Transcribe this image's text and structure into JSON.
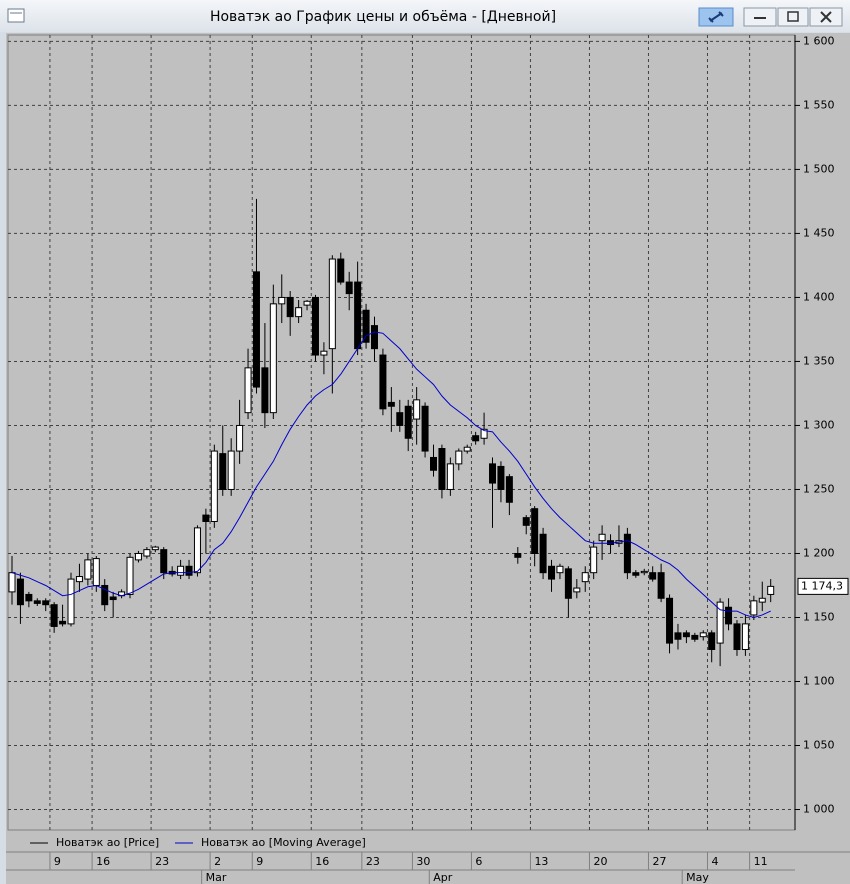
{
  "chart_data": {
    "type": "candlestick",
    "title": "Новатэк ао График цены и объёма - [Дневной]",
    "categories": [
      null,
      null,
      null,
      null,
      null,
      "9",
      null,
      null,
      null,
      null,
      "16",
      null,
      null,
      null,
      null,
      null,
      null,
      "23",
      null,
      null,
      null,
      null,
      null,
      null,
      "2",
      null,
      null,
      null,
      null,
      "9",
      null,
      null,
      null,
      null,
      null,
      null,
      "16",
      null,
      null,
      null,
      null,
      null,
      "23",
      null,
      null,
      null,
      null,
      null,
      "30",
      null,
      null,
      null,
      null,
      null,
      null,
      "6",
      null,
      null,
      null,
      null,
      null,
      null,
      "13",
      null,
      null,
      null,
      null,
      null,
      null,
      "20",
      null,
      null,
      null,
      null,
      null,
      null,
      "27",
      null,
      null,
      null,
      null,
      null,
      null,
      "4",
      null,
      null,
      null,
      null,
      "11",
      null,
      null
    ],
    "month_labels": [
      null,
      null,
      null,
      null,
      null,
      null,
      null,
      null,
      null,
      null,
      null,
      null,
      null,
      null,
      null,
      null,
      null,
      null,
      null,
      null,
      null,
      null,
      null,
      "Mar",
      null,
      null,
      null,
      null,
      null,
      null,
      null,
      null,
      null,
      null,
      null,
      null,
      null,
      null,
      null,
      null,
      null,
      null,
      null,
      null,
      null,
      null,
      null,
      null,
      null,
      null,
      "Apr",
      null,
      null,
      null,
      null,
      null,
      null,
      null,
      null,
      null,
      null,
      null,
      null,
      null,
      null,
      null,
      null,
      null,
      null,
      null,
      null,
      null,
      null,
      null,
      null,
      null,
      null,
      null,
      null,
      null,
      "May",
      null,
      null,
      null,
      null,
      null,
      null,
      null,
      null,
      null,
      null
    ],
    "series": [
      {
        "name": "Новатэк ао [Price]",
        "color": "#000000",
        "up_color": "#ffffff",
        "down_color": "#000000",
        "open": [
          1170,
          1180,
          1168,
          1163,
          1163,
          1160,
          1147,
          1145,
          1178,
          1180,
          1175,
          1175,
          1166,
          1167,
          1168,
          1195,
          1198,
          1203,
          1203,
          1186,
          1183,
          1190,
          1185,
          1230,
          1225,
          1278,
          1250,
          1280,
          1310,
          1420,
          1345,
          1310,
          1395,
          1400,
          1385,
          1394,
          1400,
          1355,
          1360,
          1430,
          1412,
          1412,
          1390,
          1378,
          1355,
          1318,
          1310,
          1315,
          1305,
          1315,
          1275,
          1282,
          1250,
          1270,
          1280,
          1292,
          1290,
          1270,
          1268,
          1260,
          1200,
          1228,
          1235,
          1215,
          1190,
          1185,
          1188,
          1170,
          1178,
          1185,
          1210,
          1210,
          1208,
          1215,
          1185,
          1185,
          1185,
          1185,
          1165,
          1138,
          1138,
          1136,
          1135,
          1138,
          1130,
          1158,
          1145,
          1125,
          1152,
          1162,
          1168
        ],
        "high": [
          1198,
          1185,
          1170,
          1165,
          1165,
          1162,
          1160,
          1185,
          1192,
          1200,
          1198,
          1180,
          1170,
          1172,
          1200,
          1202,
          1205,
          1206,
          1205,
          1190,
          1195,
          1195,
          1222,
          1235,
          1285,
          1300,
          1290,
          1320,
          1360,
          1477,
          1380,
          1410,
          1418,
          1405,
          1398,
          1398,
          1402,
          1365,
          1433,
          1435,
          1420,
          1428,
          1395,
          1385,
          1360,
          1330,
          1320,
          1320,
          1330,
          1318,
          1285,
          1285,
          1275,
          1282,
          1285,
          1295,
          1310,
          1275,
          1272,
          1262,
          1205,
          1230,
          1237,
          1220,
          1195,
          1192,
          1190,
          1180,
          1190,
          1210,
          1222,
          1215,
          1222,
          1220,
          1187,
          1188,
          1190,
          1192,
          1168,
          1145,
          1140,
          1138,
          1140,
          1140,
          1165,
          1165,
          1148,
          1152,
          1167,
          1178,
          1180
        ],
        "low": [
          1160,
          1145,
          1158,
          1159,
          1155,
          1138,
          1143,
          1143,
          1170,
          1175,
          1170,
          1155,
          1150,
          1165,
          1165,
          1193,
          1196,
          1201,
          1180,
          1182,
          1180,
          1180,
          1182,
          1200,
          1220,
          1245,
          1245,
          1270,
          1305,
          1325,
          1298,
          1305,
          1380,
          1370,
          1380,
          1390,
          1350,
          1340,
          1325,
          1410,
          1390,
          1355,
          1360,
          1350,
          1308,
          1295,
          1295,
          1280,
          1285,
          1275,
          1260,
          1243,
          1245,
          1265,
          1278,
          1285,
          1285,
          1220,
          1240,
          1230,
          1192,
          1215,
          1190,
          1180,
          1170,
          1180,
          1150,
          1165,
          1170,
          1180,
          1195,
          1200,
          1205,
          1180,
          1181,
          1183,
          1178,
          1162,
          1122,
          1125,
          1130,
          1131,
          1132,
          1115,
          1112,
          1140,
          1120,
          1120,
          1148,
          1155,
          1162
        ],
        "close": [
          1185,
          1160,
          1163,
          1161,
          1160,
          1143,
          1145,
          1180,
          1182,
          1195,
          1196,
          1160,
          1164,
          1170,
          1197,
          1200,
          1203,
          1205,
          1185,
          1184,
          1190,
          1183,
          1220,
          1225,
          1280,
          1250,
          1280,
          1300,
          1345,
          1330,
          1310,
          1395,
          1400,
          1385,
          1392,
          1397,
          1355,
          1358,
          1430,
          1412,
          1403,
          1360,
          1365,
          1360,
          1313,
          1315,
          1300,
          1290,
          1320,
          1280,
          1265,
          1250,
          1270,
          1280,
          1283,
          1288,
          1297,
          1255,
          1250,
          1240,
          1197,
          1222,
          1200,
          1185,
          1180,
          1190,
          1165,
          1173,
          1185,
          1205,
          1215,
          1207,
          1210,
          1185,
          1183,
          1186,
          1180,
          1165,
          1130,
          1133,
          1135,
          1133,
          1138,
          1125,
          1162,
          1145,
          1125,
          1145,
          1163,
          1165,
          1174.3
        ],
        "last_close_label": "1 174,3"
      },
      {
        "name": "Новатэк ао [Moving Average]",
        "color": "#0000cc",
        "type": "line",
        "values": [
          1185,
          1183,
          1181,
          1178,
          1175,
          1171,
          1167,
          1168,
          1171,
          1174,
          1175,
          1172,
          1169,
          1167,
          1169,
          1172,
          1176,
          1180,
          1184,
          1185,
          1185,
          1185,
          1186,
          1193,
          1203,
          1208,
          1217,
          1228,
          1240,
          1252,
          1262,
          1272,
          1285,
          1297,
          1307,
          1316,
          1323,
          1328,
          1332,
          1340,
          1350,
          1360,
          1370,
          1373,
          1372,
          1366,
          1360,
          1352,
          1344,
          1338,
          1332,
          1323,
          1316,
          1311,
          1306,
          1300,
          1296,
          1295,
          1287,
          1280,
          1272,
          1262,
          1252,
          1243,
          1235,
          1228,
          1222,
          1216,
          1210,
          1208,
          1208,
          1208,
          1209,
          1210,
          1207,
          1203,
          1199,
          1195,
          1192,
          1187,
          1180,
          1174,
          1168,
          1162,
          1156,
          1155,
          1155,
          1152,
          1150,
          1152,
          1155
        ]
      }
    ],
    "ylim": [
      984,
      1605
    ],
    "yticks": [
      {
        "value": 1000,
        "label": "1 000"
      },
      {
        "value": 1050,
        "label": "1 050"
      },
      {
        "value": 1100,
        "label": "1 100"
      },
      {
        "value": 1150,
        "label": "1 150"
      },
      {
        "value": 1200,
        "label": "1 200"
      },
      {
        "value": 1250,
        "label": "1 250"
      },
      {
        "value": 1300,
        "label": "1 300"
      },
      {
        "value": 1350,
        "label": "1 350"
      },
      {
        "value": 1400,
        "label": "1 400"
      },
      {
        "value": 1450,
        "label": "1 450"
      },
      {
        "value": 1500,
        "label": "1 500"
      },
      {
        "value": 1550,
        "label": "1 550"
      },
      {
        "value": 1600,
        "label": "1 600"
      }
    ],
    "grid": true
  }
}
